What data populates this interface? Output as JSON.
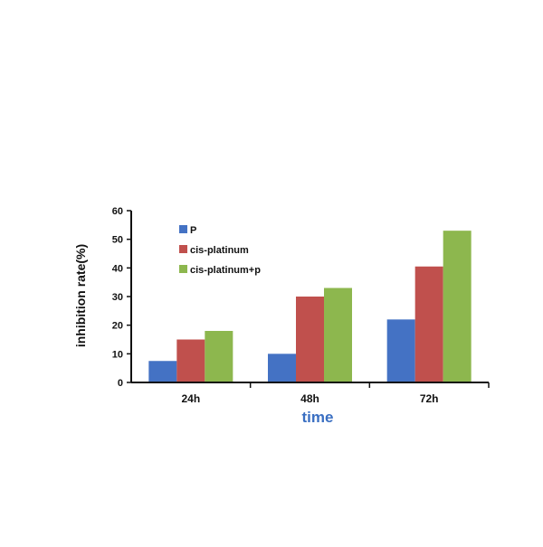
{
  "chart_data": {
    "type": "bar",
    "categories": [
      "24h",
      "48h",
      "72h"
    ],
    "series": [
      {
        "name": "P",
        "color": "#4472C4",
        "values": [
          7.5,
          10,
          22
        ]
      },
      {
        "name": "cis-platinum",
        "color": "#C0504D",
        "values": [
          15,
          30,
          40.5
        ]
      },
      {
        "name": "cis-platinum+p",
        "color": "#8DB74E",
        "values": [
          18,
          33,
          53
        ]
      }
    ],
    "title": "",
    "xlabel": "time",
    "ylabel": "inhibition rate(%)",
    "ylim": [
      0,
      60
    ],
    "yticks": [
      0,
      10,
      20,
      30,
      40,
      50,
      60
    ],
    "xlabel_color": "#3A6FC2",
    "grid": false,
    "legend_position": "top-left"
  }
}
